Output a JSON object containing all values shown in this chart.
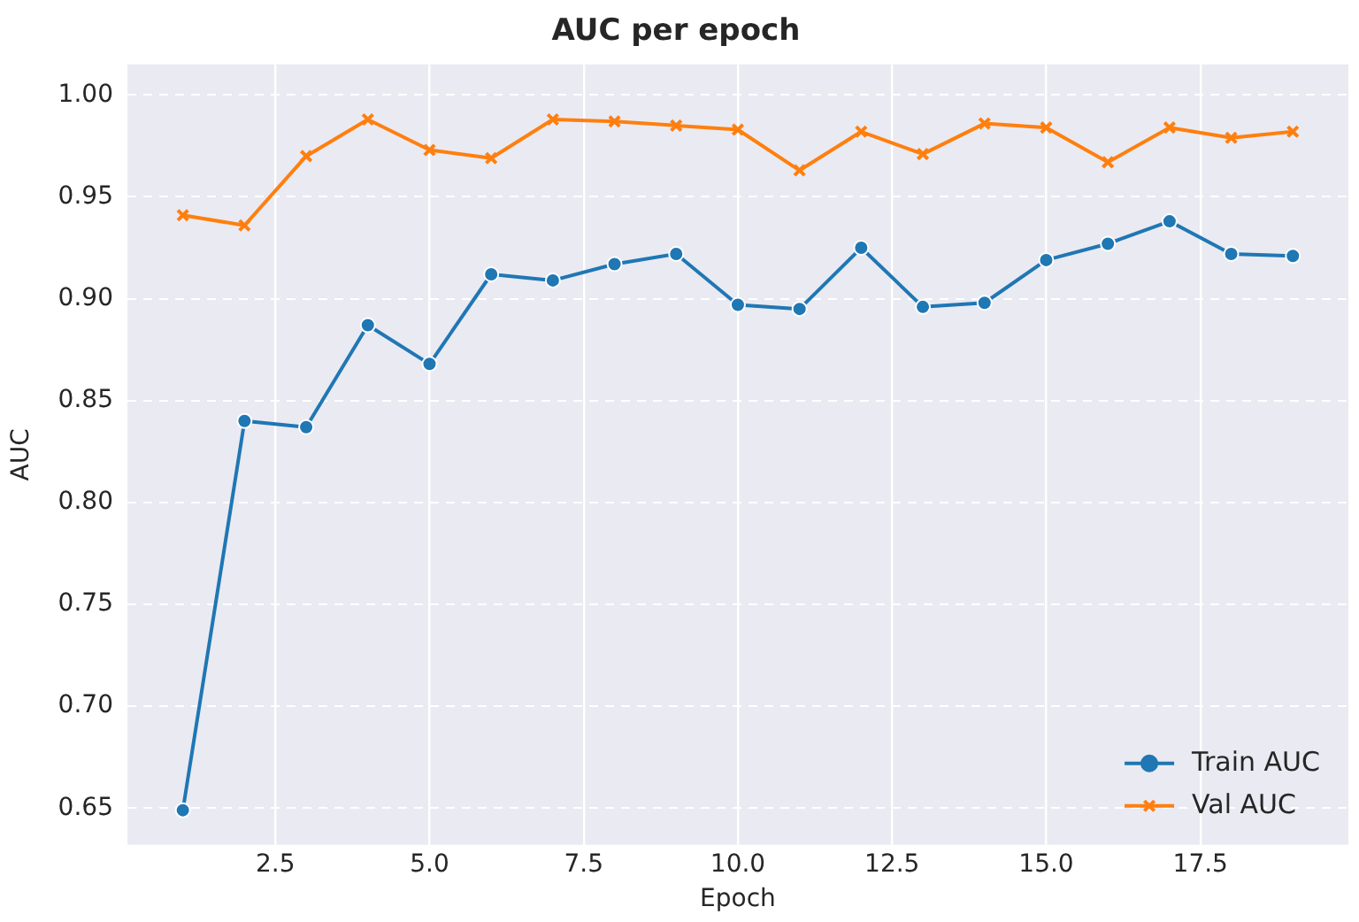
{
  "chart_data": {
    "type": "line",
    "title": "AUC per epoch",
    "xlabel": "Epoch",
    "ylabel": "AUC",
    "x": [
      1,
      2,
      3,
      4,
      5,
      6,
      7,
      8,
      9,
      10,
      11,
      12,
      13,
      14,
      15,
      16,
      17,
      18,
      19
    ],
    "series": [
      {
        "name": "Train AUC",
        "color": "#1f77b4",
        "marker": "circle",
        "values": [
          0.649,
          0.84,
          0.837,
          0.887,
          0.868,
          0.912,
          0.909,
          0.917,
          0.922,
          0.897,
          0.895,
          0.925,
          0.896,
          0.898,
          0.919,
          0.927,
          0.938,
          0.922,
          0.921
        ]
      },
      {
        "name": "Val AUC",
        "color": "#ff7f0e",
        "marker": "cross",
        "values": [
          0.941,
          0.936,
          0.97,
          0.988,
          0.973,
          0.969,
          0.988,
          0.987,
          0.985,
          0.983,
          0.963,
          0.982,
          0.971,
          0.986,
          0.984,
          0.967,
          0.984,
          0.979,
          0.982
        ]
      }
    ],
    "xlim": [
      0.1,
      19.9
    ],
    "xticks": [
      {
        "value": 2.5,
        "label": "2.5"
      },
      {
        "value": 5,
        "label": "5.0"
      },
      {
        "value": 7.5,
        "label": "7.5"
      },
      {
        "value": 10,
        "label": "10.0"
      },
      {
        "value": 12.5,
        "label": "12.5"
      },
      {
        "value": 15,
        "label": "15.0"
      },
      {
        "value": 17.5,
        "label": "17.5"
      }
    ],
    "ylim": [
      0.632,
      1.015
    ],
    "yticks": [
      {
        "value": 0.65,
        "label": "0.65"
      },
      {
        "value": 0.7,
        "label": "0.70"
      },
      {
        "value": 0.75,
        "label": "0.75"
      },
      {
        "value": 0.8,
        "label": "0.80"
      },
      {
        "value": 0.85,
        "label": "0.85"
      },
      {
        "value": 0.9,
        "label": "0.90"
      },
      {
        "value": 0.95,
        "label": "0.95"
      },
      {
        "value": 1.0,
        "label": "1.00"
      }
    ],
    "grid": true,
    "legend": "bottom right",
    "line_style": "solid"
  }
}
